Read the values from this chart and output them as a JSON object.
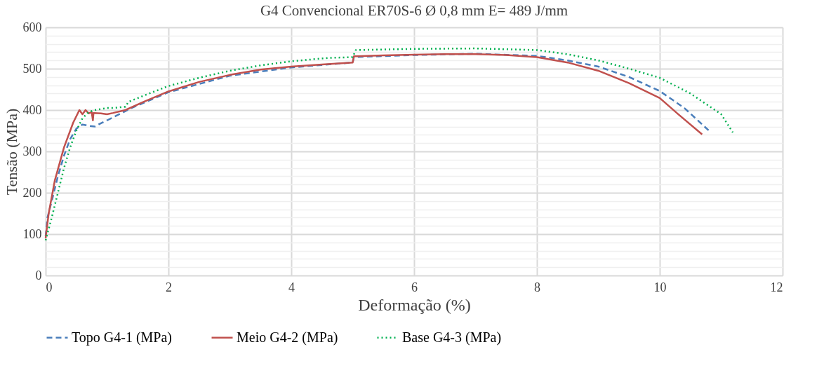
{
  "chart_data": {
    "type": "line",
    "title": "G4 Convencional ER70S-6 Ø 0,8 mm E= 489 J/mm",
    "xlabel": "Deformação (%)",
    "ylabel": "Tensão (MPa)",
    "xlim": [
      0,
      12
    ],
    "xticks": [
      0,
      2,
      4,
      6,
      8,
      10,
      12
    ],
    "ylim": [
      0,
      600
    ],
    "yticks": [
      0,
      {
        "value": 20,
        "label": null
      },
      {
        "value": 40,
        "label": null
      },
      {
        "value": 60,
        "label": null
      },
      {
        "value": 80,
        "label": null
      },
      100,
      {
        "value": 120,
        "label": null
      },
      {
        "value": 140,
        "label": null
      },
      {
        "value": 160,
        "label": null
      },
      {
        "value": 180,
        "label": null
      },
      200,
      {
        "value": 220,
        "label": null
      },
      {
        "value": 240,
        "label": null
      },
      {
        "value": 260,
        "label": null
      },
      {
        "value": 280,
        "label": null
      },
      300,
      {
        "value": 320,
        "label": null
      },
      {
        "value": 340,
        "label": null
      },
      {
        "value": 360,
        "label": null
      },
      {
        "value": 380,
        "label": null
      },
      400,
      {
        "value": 420,
        "label": null
      },
      {
        "value": 440,
        "label": null
      },
      {
        "value": 460,
        "label": null
      },
      {
        "value": 480,
        "label": null
      },
      500,
      {
        "value": 520,
        "label": null
      },
      {
        "value": 540,
        "label": null
      },
      {
        "value": 560,
        "label": null
      },
      {
        "value": 580,
        "label": null
      },
      600
    ],
    "grid": true,
    "legend": "bottom",
    "marker": "none",
    "series": [
      {
        "name": "Topo G4-1 (MPa)",
        "color": "#4a7ebb",
        "line_style": "dashed",
        "x": [
          0,
          0.03,
          0.1,
          0.2,
          0.3,
          0.4,
          0.5,
          0.6,
          0.7,
          0.8,
          0.9,
          1.0,
          1.2,
          1.4,
          2,
          3,
          4,
          5,
          5.02,
          6,
          7,
          8,
          8.5,
          9,
          9.5,
          10,
          10.4,
          10.81
        ],
        "values": [
          95,
          140,
          180,
          240,
          290,
          330,
          355,
          365,
          362,
          360,
          368,
          375,
          390,
          405,
          443,
          483,
          503,
          515,
          528,
          533,
          536,
          531,
          520,
          505,
          480,
          446,
          405,
          349
        ]
      },
      {
        "name": "Meio G4-2 (MPa)",
        "color": "#c0504d",
        "line_style": "solid",
        "x": [
          0,
          0.05,
          0.15,
          0.3,
          0.45,
          0.55,
          0.6,
          0.65,
          0.7,
          0.75,
          0.77,
          0.78,
          0.9,
          1.0,
          1.1,
          1.3,
          1.6,
          2,
          2.5,
          3,
          3.5,
          4,
          4.5,
          5,
          5.02,
          5.5,
          6,
          6.5,
          7,
          7.5,
          8,
          8.5,
          9,
          9.5,
          10,
          10.3,
          10.69
        ],
        "values": [
          90,
          150,
          230,
          310,
          370,
          400,
          390,
          400,
          392,
          395,
          375,
          393,
          392,
          390,
          393,
          400,
          420,
          445,
          468,
          485,
          498,
          505,
          510,
          515,
          530,
          532,
          534,
          535,
          535,
          533,
          528,
          515,
          495,
          465,
          429,
          390,
          341
        ]
      },
      {
        "name": "Base G4-3 (MPa)",
        "color": "#00b050",
        "line_style": "dotted",
        "x": [
          0,
          0.1,
          0.2,
          0.3,
          0.4,
          0.5,
          0.6,
          0.7,
          0.8,
          1.0,
          1.1,
          1.3,
          1.35,
          1.6,
          2,
          2.5,
          3,
          3.5,
          4,
          4.6,
          5,
          5.05,
          6,
          7,
          8,
          8.5,
          9,
          9.5,
          10,
          10.5,
          11,
          11.19
        ],
        "values": [
          85,
          140,
          200,
          260,
          310,
          350,
          380,
          395,
          400,
          405,
          405,
          408,
          420,
          435,
          458,
          478,
          495,
          508,
          518,
          526,
          528,
          545,
          548,
          549,
          545,
          535,
          520,
          500,
          478,
          440,
          390,
          346
        ]
      }
    ]
  }
}
